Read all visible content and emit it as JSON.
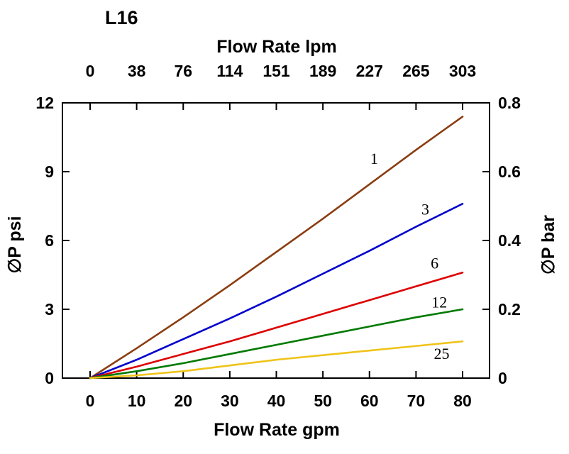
{
  "title": "L16",
  "chart_data": {
    "type": "line",
    "title": "L16",
    "xlabel_top": "Flow Rate lpm",
    "xlabel_bottom": "Flow Rate gpm",
    "ylabel_left": "∅P psi",
    "ylabel_right": "∅P bar",
    "xlim_gpm": [
      0,
      80
    ],
    "ylim_psi": [
      0,
      12
    ],
    "x_gpm_ticks": [
      "0",
      "10",
      "20",
      "30",
      "40",
      "50",
      "60",
      "70",
      "80"
    ],
    "x_lpm_ticks": [
      "0",
      "38",
      "76",
      "114",
      "151",
      "189",
      "227",
      "265",
      "303"
    ],
    "y_psi_ticks": [
      "0",
      "3",
      "6",
      "9",
      "12"
    ],
    "y_bar_ticks": [
      "0",
      "0.2",
      "0.4",
      "0.6",
      "0.8"
    ],
    "grid": false,
    "legend_position": "inline-curve-labels",
    "x": [
      0,
      10,
      20,
      30,
      40,
      50,
      60,
      70,
      80
    ],
    "series": [
      {
        "name": "1",
        "color": "#8a3d10",
        "values": [
          0,
          1.3,
          2.65,
          4.05,
          5.5,
          6.95,
          8.45,
          9.95,
          11.4
        ],
        "label_pos": {
          "gpm": 61,
          "psi": 9.55
        }
      },
      {
        "name": "3",
        "color": "#0000cc",
        "values": [
          0,
          0.8,
          1.7,
          2.6,
          3.55,
          4.55,
          5.55,
          6.6,
          7.6
        ],
        "label_pos": {
          "gpm": 72,
          "psi": 7.35
        }
      },
      {
        "name": "6",
        "color": "#dd0000",
        "values": [
          0,
          0.5,
          1.05,
          1.6,
          2.2,
          2.8,
          3.4,
          4.0,
          4.6
        ],
        "label_pos": {
          "gpm": 74,
          "psi": 5.0
        }
      },
      {
        "name": "12",
        "color": "#007a00",
        "values": [
          0,
          0.3,
          0.65,
          1.05,
          1.45,
          1.85,
          2.25,
          2.65,
          3.0
        ],
        "label_pos": {
          "gpm": 75,
          "psi": 3.3
        }
      },
      {
        "name": "25",
        "color": "#efc319",
        "values": [
          0,
          0.12,
          0.3,
          0.55,
          0.8,
          1.0,
          1.2,
          1.4,
          1.6
        ],
        "label_pos": {
          "gpm": 75.5,
          "psi": 1.05
        }
      }
    ]
  }
}
